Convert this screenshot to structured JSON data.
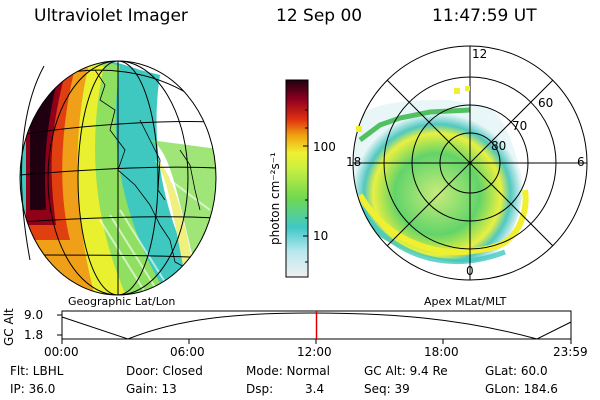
{
  "header": {
    "instrument": "Ultraviolet Imager",
    "date": "12 Sep 00",
    "time": "11:47:59 UT"
  },
  "colorbar": {
    "unit_label": "photon cm⁻²s⁻¹",
    "ticks": [
      "100",
      "10"
    ],
    "scale": "log"
  },
  "left_panel": {
    "caption": "Geographic Lat/Lon"
  },
  "right_panel": {
    "caption": "Apex MLat/MLT",
    "mlt_labels": [
      "12",
      "18",
      "6",
      "0"
    ],
    "mlat_labels": [
      "60",
      "70",
      "80"
    ]
  },
  "timeline": {
    "ylabel": "GC Alt",
    "yticks": [
      "9.0",
      "1.8"
    ],
    "xticks": [
      "00:00",
      "06:00",
      "12:00",
      "18:00",
      "23:59"
    ],
    "current_time_fraction": 0.5,
    "marker_color": "#e00000"
  },
  "status": {
    "flt": "Flt: LBHL",
    "ip": "IP: 36.0",
    "door": "Door: Closed",
    "gain": "Gain: 13",
    "mode": "Mode: Normal",
    "dsp_label": "Dsp:",
    "dsp_value": "3.4",
    "gc_alt": "GC Alt: 9.4 Re",
    "seq": "Seq: 39",
    "glat": "GLat:  60.0",
    "glon": "GLon: 184.6"
  },
  "colors": {
    "scale": [
      "#f2f2f2",
      "#7fd7e0",
      "#38c8c0",
      "#8fe060",
      "#e8f030",
      "#f0a018",
      "#e04010",
      "#a00018",
      "#300010"
    ]
  }
}
